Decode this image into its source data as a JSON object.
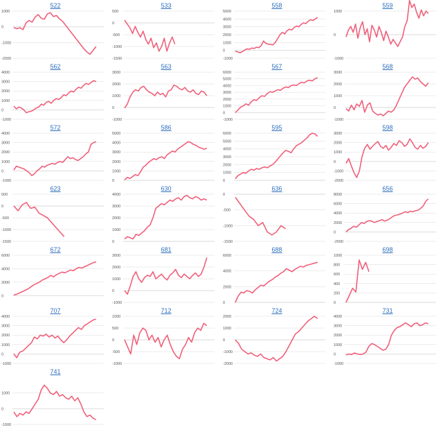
{
  "line_color": "#f0607a",
  "grid_color": "#d8d8d8",
  "link_color": "#2e6fbd",
  "chart_data": [
    {
      "type": "line",
      "title": "522",
      "ylim": [
        -2000,
        1000
      ],
      "yticks": [
        1000,
        0,
        -1000,
        -2000
      ],
      "y": [
        -50,
        -120,
        -60,
        -180,
        250,
        400,
        300,
        620,
        780,
        540,
        480,
        820,
        900,
        650,
        720,
        500,
        350,
        100,
        -150,
        -400,
        -650,
        -900,
        -1150,
        -1400,
        -1600,
        -1750,
        -1500,
        -1250
      ]
    },
    {
      "type": "line",
      "title": "533",
      "ylim": [
        -1500,
        500
      ],
      "yticks": [
        500,
        0,
        -500,
        -1000,
        -1500
      ],
      "y": [
        120,
        -50,
        -200,
        -450,
        -150,
        -400,
        -600,
        -350,
        -700,
        -900,
        -650,
        -1050,
        -850,
        -1200,
        -1000,
        -650,
        -1200,
        -850,
        -600,
        -900
      ]
    },
    {
      "type": "line",
      "title": "558",
      "ylim": [
        -1000,
        5000
      ],
      "yticks": [
        5000,
        4000,
        3000,
        2000,
        1000,
        0,
        -1000
      ],
      "y": [
        -100,
        -200,
        -300,
        -150,
        50,
        200,
        150,
        300,
        250,
        400,
        350,
        600,
        1200,
        900,
        800,
        750,
        700,
        1000,
        1500,
        2000,
        2300,
        2100,
        2500,
        2700,
        2600,
        2900,
        3100,
        3000,
        3300,
        3500,
        3400,
        3700,
        3900,
        3800,
        4000,
        4200
      ]
    },
    {
      "type": "line",
      "title": "559",
      "ylim": [
        -1000,
        1000
      ],
      "yticks": [
        1000,
        0,
        -1000
      ],
      "y": [
        -100,
        200,
        350,
        100,
        450,
        -150,
        300,
        550,
        0,
        250,
        -300,
        400,
        200,
        -100,
        350,
        100,
        -250,
        150,
        -100,
        -400,
        -200,
        -350,
        -500,
        -300,
        -100,
        350,
        600,
        1450,
        1150,
        1300,
        950,
        700,
        1050,
        800,
        1000,
        900
      ]
    },
    {
      "type": "line",
      "title": "562",
      "ylim": [
        -1000,
        4000
      ],
      "yticks": [
        4000,
        3000,
        2000,
        1000,
        0,
        -1000
      ],
      "y": [
        400,
        100,
        300,
        200,
        0,
        -300,
        -200,
        -150,
        0,
        200,
        300,
        600,
        500,
        800,
        900,
        700,
        1000,
        1200,
        1100,
        1300,
        1600,
        1500,
        1800,
        2000,
        1900,
        2200,
        2400,
        2300,
        2600,
        2800,
        2700,
        2900,
        3100,
        3000
      ]
    },
    {
      "type": "line",
      "title": "563",
      "ylim": [
        -1000,
        3000
      ],
      "yticks": [
        3000,
        2000,
        1000,
        0,
        -1000
      ],
      "y": [
        -50,
        300,
        900,
        1300,
        1500,
        1400,
        1700,
        1800,
        1500,
        1300,
        1200,
        1000,
        1300,
        1100,
        1200,
        900,
        1400,
        1500,
        1900,
        1800,
        1600,
        1500,
        1700,
        1400,
        1300,
        1500,
        1200,
        1100,
        1400,
        1300,
        1000
      ]
    },
    {
      "type": "line",
      "title": "567",
      "ylim": [
        -1000,
        6000
      ],
      "yticks": [
        6000,
        5000,
        4000,
        3000,
        2000,
        1000,
        0,
        -1000
      ],
      "y": [
        0,
        400,
        800,
        1000,
        1300,
        1100,
        1600,
        1900,
        1800,
        2200,
        2500,
        2400,
        2800,
        3100,
        3000,
        3200,
        3400,
        3300,
        3600,
        3800,
        3700,
        4000,
        4100,
        4000,
        4300,
        4500,
        4400,
        4700,
        4800,
        4700,
        5000,
        5200
      ]
    },
    {
      "type": "line",
      "title": "568",
      "ylim": [
        -1000,
        3000
      ],
      "yticks": [
        3000,
        2000,
        1000,
        0,
        -1000
      ],
      "y": [
        -100,
        -300,
        200,
        -200,
        300,
        100,
        600,
        -400,
        200,
        400,
        -300,
        -500,
        -650,
        -550,
        -700,
        -500,
        -300,
        -400,
        -200,
        200,
        700,
        1200,
        1700,
        2000,
        2300,
        2600,
        2400,
        2500,
        2200,
        2000,
        1800,
        2100
      ]
    },
    {
      "type": "line",
      "title": "572",
      "ylim": [
        -1000,
        4000
      ],
      "yticks": [
        4000,
        3000,
        2000,
        1000,
        0,
        -1000
      ],
      "y": [
        100,
        500,
        400,
        300,
        200,
        0,
        -200,
        -500,
        -300,
        0,
        200,
        500,
        400,
        600,
        700,
        800,
        700,
        900,
        1000,
        900,
        1200,
        1500,
        1300,
        1400,
        1200,
        1100,
        1300,
        1500,
        1800,
        2000,
        2800,
        3000,
        3100
      ]
    },
    {
      "type": "line",
      "title": "586",
      "ylim": [
        0,
        5000
      ],
      "yticks": [
        5000,
        4000,
        3000,
        2000,
        1000,
        0
      ],
      "y": [
        50,
        300,
        200,
        400,
        600,
        500,
        900,
        1400,
        1600,
        1900,
        2100,
        2300,
        2200,
        2400,
        2500,
        2300,
        2700,
        2900,
        3100,
        3000,
        3300,
        3500,
        3700,
        3900,
        4100,
        4000,
        3800,
        3700,
        3500,
        3400,
        3300,
        3400
      ]
    },
    {
      "type": "line",
      "title": "595",
      "ylim": [
        0,
        6000
      ],
      "yticks": [
        6000,
        5000,
        4000,
        3000,
        2000,
        1000,
        0
      ],
      "y": [
        200,
        600,
        800,
        1000,
        900,
        1200,
        1400,
        1300,
        1500,
        1400,
        1600,
        1700,
        1600,
        1800,
        2000,
        2300,
        2700,
        3100,
        3500,
        3800,
        3700,
        3500,
        4000,
        4400,
        4600,
        4800,
        5100,
        5400,
        5800,
        6000,
        5900,
        5600
      ]
    },
    {
      "type": "line",
      "title": "598",
      "ylim": [
        -2000,
        3000
      ],
      "yticks": [
        3000,
        2000,
        1000,
        0,
        -1000,
        -2000
      ],
      "y": [
        -200,
        300,
        -500,
        -1200,
        -1700,
        -1000,
        500,
        1400,
        1800,
        1300,
        1600,
        1900,
        2100,
        1600,
        1400,
        1700,
        1200,
        1500,
        1900,
        1700,
        2200,
        2000,
        1600,
        1800,
        2400,
        2000,
        1500,
        1300,
        1700,
        1400,
        1600,
        2000
      ]
    },
    {
      "type": "line",
      "title": "623",
      "ylim": [
        -1500,
        500
      ],
      "yticks": [
        500,
        0,
        -500,
        -1000,
        -1500
      ],
      "y": [
        0,
        -200,
        50,
        150,
        -100,
        -50,
        -300,
        -400,
        -500,
        -700,
        -900,
        -1100,
        -1300
      ]
    },
    {
      "type": "line",
      "title": "630",
      "ylim": [
        0,
        4000
      ],
      "yticks": [
        4000,
        3000,
        2000,
        1000,
        0
      ],
      "y": [
        200,
        400,
        300,
        200,
        600,
        500,
        700,
        900,
        1200,
        1400,
        2000,
        2800,
        3000,
        3200,
        3100,
        3300,
        3500,
        3400,
        3600,
        3700,
        3500,
        3800,
        3900,
        3700,
        3600,
        3800,
        3700,
        3500,
        3600,
        3500
      ]
    },
    {
      "type": "line",
      "title": "636",
      "ylim": [
        -1500,
        0
      ],
      "yticks": [
        0,
        -500,
        -1000,
        -1500
      ],
      "y": [
        -100,
        -300,
        -500,
        -700,
        -800,
        -1000,
        -900,
        -1200,
        -1300,
        -1200,
        -1000,
        -1100
      ]
    },
    {
      "type": "line",
      "title": "656",
      "ylim": [
        -2000,
        8000
      ],
      "yticks": [
        8000,
        6000,
        4000,
        2000,
        0,
        -2000
      ],
      "y": [
        0,
        500,
        800,
        1200,
        1000,
        1500,
        2000,
        1800,
        2200,
        2400,
        2300,
        2000,
        2200,
        2400,
        2600,
        2300,
        2500,
        2800,
        3200,
        3500,
        3600,
        3800,
        4000,
        4300,
        4100,
        4400,
        4300,
        4500,
        4600,
        5000,
        5500,
        6500,
        7000
      ]
    },
    {
      "type": "line",
      "title": "672",
      "ylim": [
        -1000,
        6000
      ],
      "yticks": [
        6000,
        4000,
        2000,
        0
      ],
      "y": [
        100,
        200,
        400,
        600,
        800,
        1000,
        1300,
        1600,
        1800,
        2000,
        2300,
        2500,
        2700,
        3000,
        2800,
        3100,
        3300,
        3500,
        3400,
        3600,
        3800,
        3700,
        4000,
        4200,
        4100,
        4300,
        4500,
        4700,
        4900,
        5000
      ]
    },
    {
      "type": "line",
      "title": "681",
      "ylim": [
        -1000,
        3000
      ],
      "yticks": [
        3000,
        2000,
        1000,
        0,
        -1000
      ],
      "y": [
        0,
        -300,
        400,
        1200,
        1600,
        1000,
        700,
        1100,
        1300,
        1200,
        1600,
        1000,
        1200,
        1400,
        1100,
        900,
        1300,
        1500,
        1800,
        1300,
        1100,
        1400,
        1200,
        1000,
        1300,
        1500,
        1200,
        1400,
        2000,
        2800
      ]
    },
    {
      "type": "line",
      "title": "688",
      "ylim": [
        0,
        6000
      ],
      "yticks": [
        6000,
        4000,
        2000,
        0
      ],
      "y": [
        0,
        800,
        1300,
        1200,
        1500,
        1400,
        1200,
        1600,
        1900,
        2200,
        2100,
        2400,
        2700,
        2900,
        3200,
        3400,
        3700,
        3900,
        4300,
        4100,
        3900,
        4200,
        4400,
        4600,
        4500,
        4700,
        4800,
        4900,
        5000,
        5100
      ]
    },
    {
      "type": "line",
      "title": "698",
      "ylim": [
        0,
        1000
      ],
      "yticks": [
        1000,
        800,
        600,
        400,
        200,
        0
      ],
      "y": [
        0,
        150,
        300,
        220,
        900,
        700,
        850,
        650
      ]
    },
    {
      "type": "line",
      "title": "707",
      "ylim": [
        -1000,
        4000
      ],
      "yticks": [
        4000,
        3000,
        2000,
        1000,
        0,
        -1000
      ],
      "y": [
        0,
        -400,
        200,
        300,
        600,
        900,
        1200,
        1800,
        1600,
        2000,
        1900,
        2100,
        1800,
        2000,
        1700,
        1900,
        1500,
        1200,
        1500,
        1900,
        2200,
        2500,
        2800,
        2600,
        3000,
        3200,
        3400,
        3600,
        3700
      ]
    },
    {
      "type": "line",
      "title": "712",
      "ylim": [
        -1000,
        1000
      ],
      "yticks": [
        1000,
        500,
        0,
        -500,
        -1000
      ],
      "y": [
        0,
        -300,
        -600,
        200,
        -200,
        300,
        500,
        400,
        0,
        200,
        -100,
        100,
        -300,
        0,
        200,
        -200,
        -500,
        -700,
        -800,
        -400,
        -200,
        100,
        -100,
        300,
        500,
        400,
        700,
        600
      ]
    },
    {
      "type": "line",
      "title": "724",
      "ylim": [
        -2000,
        2000
      ],
      "yticks": [
        2000,
        1000,
        0,
        -1000,
        -2000
      ],
      "y": [
        0,
        -300,
        -800,
        -1000,
        -1200,
        -1100,
        -1300,
        -1400,
        -1200,
        -1500,
        -1600,
        -1700,
        -1500,
        -1800,
        -1600,
        -1400,
        -1000,
        -500,
        0,
        500,
        700,
        1000,
        1300,
        1600,
        1800,
        2000,
        1800
      ]
    },
    {
      "type": "line",
      "title": "731",
      "ylim": [
        -1000,
        4000
      ],
      "yticks": [
        4000,
        3000,
        2000,
        1000,
        0,
        -1000
      ],
      "y": [
        -100,
        0,
        -50,
        100,
        0,
        -50,
        0,
        200,
        800,
        1100,
        1000,
        800,
        600,
        400,
        500,
        1000,
        2000,
        2500,
        2800,
        2900,
        3100,
        3300,
        3100,
        2900,
        3200,
        3300,
        3000,
        3100,
        3300,
        3200
      ]
    },
    {
      "type": "line",
      "title": "741",
      "ylim": [
        -1000,
        2000
      ],
      "yticks": [
        1000,
        0,
        -1000
      ],
      "y": [
        -200,
        -500,
        -300,
        -400,
        -200,
        -300,
        0,
        300,
        600,
        1200,
        1500,
        1300,
        1000,
        900,
        1100,
        800,
        900,
        700,
        600,
        800,
        500,
        700,
        300,
        -200,
        -500,
        -400,
        -600,
        -700
      ]
    }
  ]
}
